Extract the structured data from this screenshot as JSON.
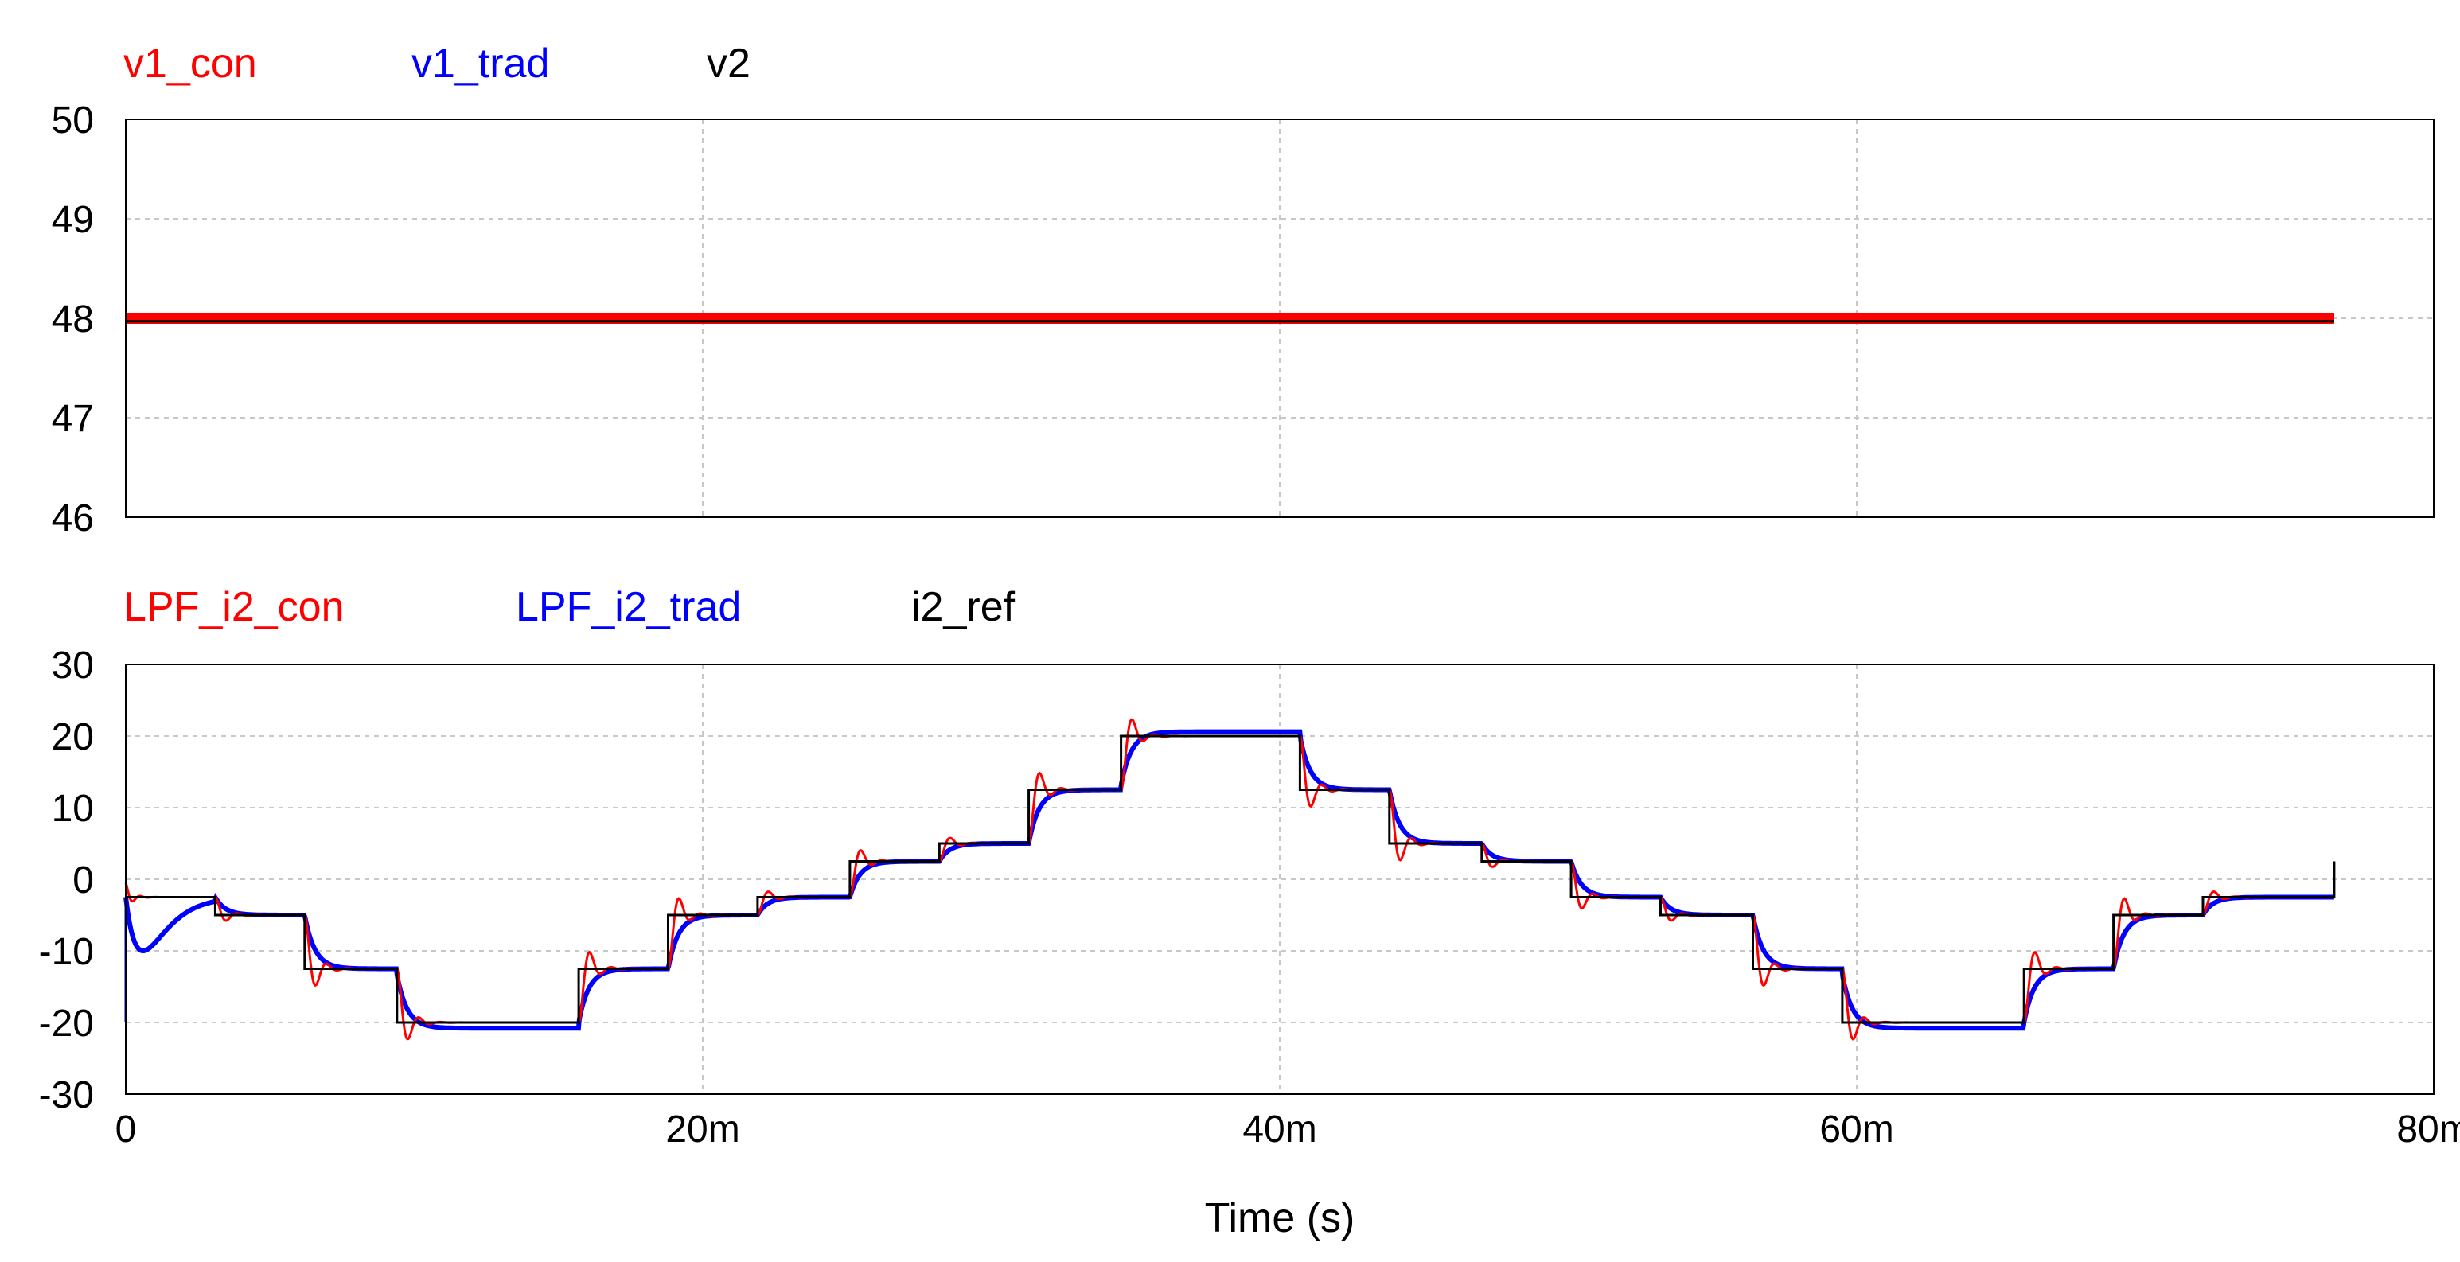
{
  "chart_data": [
    {
      "type": "line",
      "legend": [
        {
          "name": "v1_con",
          "color": "#ff0000"
        },
        {
          "name": "v1_trad",
          "color": "#0000ff"
        },
        {
          "name": "v2",
          "color": "#000000"
        }
      ],
      "ylim": [
        46,
        50
      ],
      "yticks": [
        "50",
        "49",
        "48",
        "47",
        "46"
      ],
      "xlim": [
        0,
        0.08
      ],
      "grid": true,
      "series": [
        {
          "name": "v1_con",
          "color": "#ff0000",
          "x": [
            0,
            0.07655
          ],
          "y": [
            48.0,
            48.0
          ]
        },
        {
          "name": "v1_trad",
          "color": "#0000ff",
          "x": [
            0,
            0.07655
          ],
          "y": [
            48.0,
            48.0
          ]
        },
        {
          "name": "v2",
          "color": "#000000",
          "x": [
            0,
            0.07655
          ],
          "y": [
            47.97,
            47.97
          ]
        }
      ]
    },
    {
      "type": "line",
      "legend": [
        {
          "name": "LPF_i2_con",
          "color": "#ff0000"
        },
        {
          "name": "LPF_i2_trad",
          "color": "#0000ff"
        },
        {
          "name": "i2_ref",
          "color": "#000000"
        }
      ],
      "ylim": [
        -30,
        30
      ],
      "yticks": [
        "30",
        "20",
        "10",
        "0",
        "-10",
        "-20",
        "-30"
      ],
      "xlim": [
        0,
        0.08
      ],
      "xticks": [
        "0",
        "20m",
        "40m",
        "60m",
        "80m"
      ],
      "xlabel": "Time (s)",
      "grid": true,
      "i2_ref_steps": {
        "t": [
          0,
          0.0031,
          0.0062,
          0.0094,
          0.0157,
          0.0188,
          0.0219,
          0.0251,
          0.0282,
          0.0313,
          0.0345,
          0.0407,
          0.0438,
          0.047,
          0.0501,
          0.0532,
          0.0564,
          0.0595,
          0.0658,
          0.0689,
          0.072,
          0.07655
        ],
        "y": [
          -2.5,
          -5,
          -12.5,
          -20,
          -12.5,
          -5,
          -2.5,
          2.5,
          5,
          12.5,
          20,
          12.5,
          5,
          2.5,
          -2.5,
          -5,
          -12.5,
          -20,
          -12.5,
          -5,
          -2.5,
          2.5
        ]
      }
    }
  ]
}
